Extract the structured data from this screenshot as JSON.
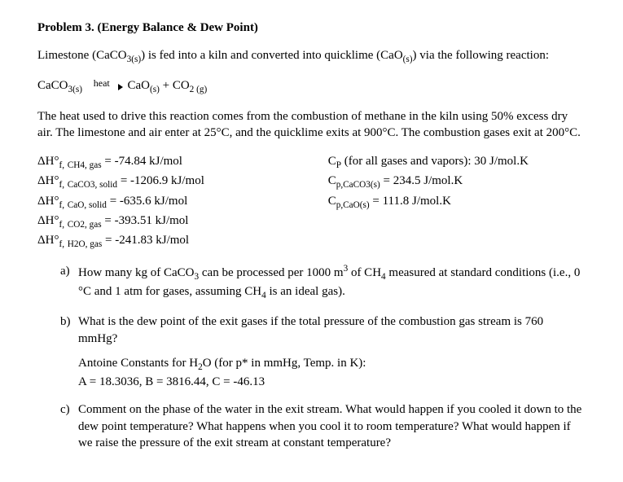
{
  "title": "Problem 3. (Energy Balance & Dew Point)",
  "intro": "Limestone (CaCO3(s)) is fed into a kiln and converted into quicklime (CaO(s)) via the following reaction:",
  "reaction": {
    "lhs": "CaCO3(s)",
    "arrow_label": "heat",
    "rhs": "CaO(s) + CO2 (g)"
  },
  "para2": "The heat used to drive this reaction comes from the combustion of methane in the kiln using 50% excess dry air. The limestone and air enter at 25°C, and the quicklime exits at 900°C. The combustion gases exit at 200°C.",
  "data_left": [
    "ΔH°f, CH4, gas = -74.84 kJ/mol",
    "ΔH°f, CaCO3, solid = -1206.9 kJ/mol",
    "ΔH°f, CaO, solid = -635.6 kJ/mol",
    "ΔH°f, CO2, gas = -393.51 kJ/mol",
    "ΔH°f, H2O, gas = -241.83 kJ/mol"
  ],
  "data_right": [
    "CP (for all gases and vapors): 30 J/mol.K",
    "Cp,CaCO3(s) = 234.5 J/mol.K",
    "Cp,CaO(s) = 111.8 J/mol.K"
  ],
  "questions": {
    "a": "How many kg of CaCO3 can be processed per 1000 m³ of CH4 measured at standard conditions (i.e., 0 °C and 1 atm for gases, assuming CH4 is an ideal gas).",
    "b": "What is the dew point of the exit gases if the total pressure of the combustion gas stream is 760 mmHg?",
    "b_sub1": "Antoine Constants for H2O (for p* in mmHg, Temp. in K):",
    "b_sub2": "A = 18.3036, B = 3816.44, C = -46.13",
    "c": "Comment on the phase of the water in the exit stream. What would happen if you cooled it down to the dew point temperature? What happens when you cool it to room temperature? What would happen if we raise the pressure of the exit stream at constant temperature?"
  }
}
